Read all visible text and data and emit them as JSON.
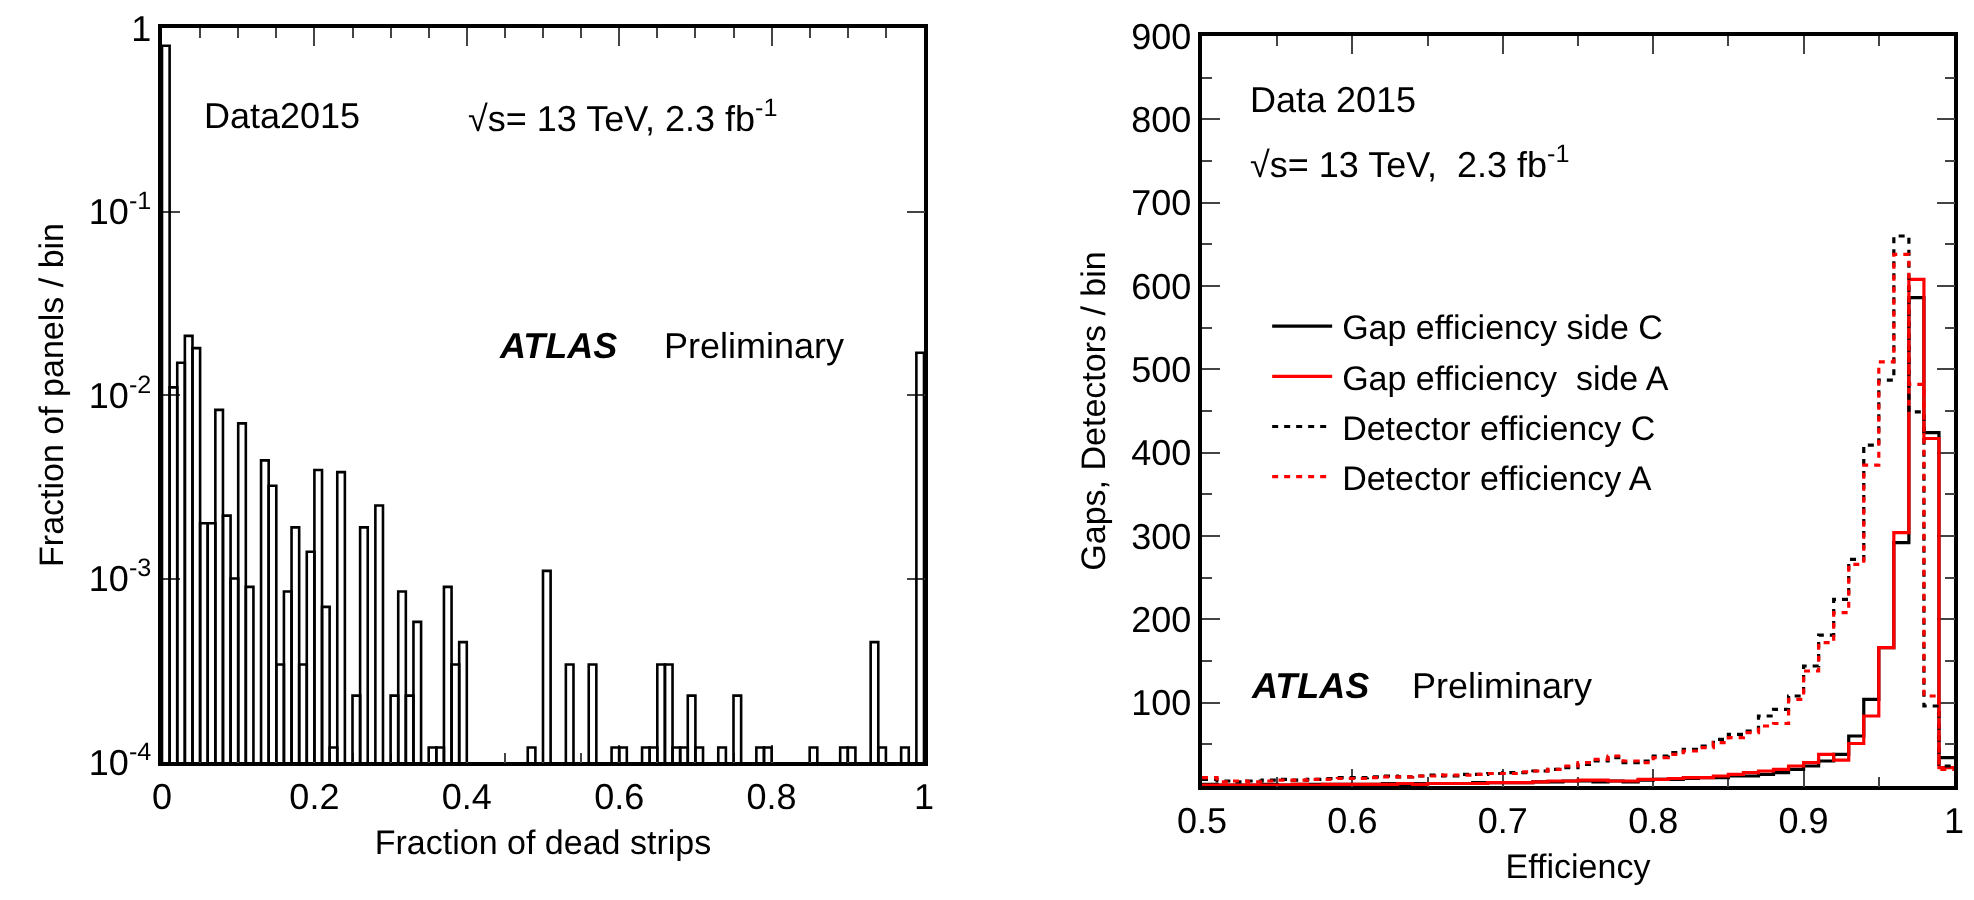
{
  "chart_data": [
    {
      "type": "histogram",
      "xlabel": "Fraction of dead strips",
      "ylabel": "Fraction of panels / bin",
      "annotations": [
        "Data2015",
        "√s= 13 TeV, 2.3 fb$^{-1}$",
        "ATLAS",
        "Preliminary"
      ],
      "bins": [
        0,
        0.01,
        0.02,
        0.03,
        0.04,
        0.05,
        0.06,
        0.07,
        0.08,
        0.09,
        0.1,
        0.11,
        0.12,
        0.13,
        0.14,
        0.15,
        0.16,
        0.17,
        0.18,
        0.19,
        0.2,
        0.21,
        0.22,
        0.23,
        0.24,
        0.25,
        0.26,
        0.27,
        0.28,
        0.29,
        0.3,
        0.31,
        0.32,
        0.33,
        0.34,
        0.35,
        0.36,
        0.37,
        0.38,
        0.39,
        0.4,
        0.41,
        0.42,
        0.43,
        0.44,
        0.45,
        0.46,
        0.47,
        0.48,
        0.49,
        0.5,
        0.51,
        0.52,
        0.53,
        0.54,
        0.55,
        0.56,
        0.57,
        0.58,
        0.59,
        0.6,
        0.61,
        0.62,
        0.63,
        0.64,
        0.65,
        0.66,
        0.67,
        0.68,
        0.69,
        0.7,
        0.71,
        0.72,
        0.73,
        0.74,
        0.75,
        0.76,
        0.77,
        0.78,
        0.79,
        0.8,
        0.81,
        0.82,
        0.83,
        0.84,
        0.85,
        0.86,
        0.87,
        0.88,
        0.89,
        0.9,
        0.91,
        0.92,
        0.93,
        0.94,
        0.95,
        0.96,
        0.97,
        0.98,
        0.99,
        1
      ],
      "values": [
        0.8,
        0.011,
        0.015,
        0.021,
        0.018,
        0.002,
        0.002,
        0.0083,
        0.0022,
        0.001,
        0.007,
        0.0009,
        null,
        0.0044,
        0.0032,
        0.00034,
        0.00085,
        0.0019,
        0.00034,
        0.0014,
        0.0039,
        0.0007,
        0.00012,
        0.0038,
        null,
        0.00023,
        0.0019,
        null,
        0.0025,
        null,
        0.00023,
        0.00085,
        0.00023,
        0.00058,
        null,
        0.00012,
        0.00012,
        0.0009,
        0.00034,
        0.00045,
        null,
        null,
        null,
        null,
        null,
        null,
        null,
        null,
        0.00012,
        null,
        0.0011,
        null,
        null,
        0.00034,
        null,
        null,
        0.00034,
        null,
        null,
        0.00012,
        0.00012,
        null,
        null,
        0.00012,
        0.00012,
        0.00034,
        0.00034,
        0.00012,
        0.00012,
        0.00023,
        0.00012,
        null,
        null,
        0.00012,
        null,
        0.00023,
        null,
        null,
        0.00012,
        0.00012,
        null,
        null,
        null,
        null,
        null,
        0.00012,
        null,
        null,
        null,
        0.00012,
        0.00012,
        null,
        null,
        0.00045,
        0.00012,
        null,
        null,
        0.00012,
        null,
        0.017
      ],
      "color": "#000000",
      "log": true,
      "xlim": [
        0,
        1
      ],
      "xticks": [
        0,
        0.2,
        0.4,
        0.6,
        0.8,
        1
      ],
      "ylim": [
        0.0001,
        1
      ],
      "yticks": [
        {
          "value": 0.0001,
          "label": "10$^{-4}$"
        },
        {
          "value": 0.001,
          "label": "10$^{-3}$"
        },
        {
          "value": 0.01,
          "label": "10$^{-2}$"
        },
        {
          "value": 0.1,
          "label": "10$^{-1}$"
        },
        1
      ]
    },
    {
      "type": "histogram",
      "xlabel": "Efficiency",
      "ylabel": "Gaps, Detectors / bin",
      "annotations": [
        "Data 2015",
        "√s= 13 TeV,  2.3 fb$^{-1}$",
        "ATLAS",
        "Preliminary"
      ],
      "bins": [
        0.5,
        0.51,
        0.52,
        0.53,
        0.54,
        0.55,
        0.56,
        0.57,
        0.58,
        0.59,
        0.6,
        0.61,
        0.62,
        0.63,
        0.64,
        0.65,
        0.66,
        0.67,
        0.68,
        0.69,
        0.7,
        0.71,
        0.72,
        0.73,
        0.74,
        0.75,
        0.76,
        0.77,
        0.78,
        0.79,
        0.8,
        0.81,
        0.82,
        0.83,
        0.84,
        0.85,
        0.86,
        0.87,
        0.88,
        0.89,
        0.9,
        0.91,
        0.92,
        0.93,
        0.94,
        0.95,
        0.96,
        0.97,
        0.98,
        0.99,
        1
      ],
      "series": [
        {
          "name": "Gap efficiency side C",
          "color": "#000000",
          "line_style": "solid",
          "values": [
            2,
            1,
            1,
            1,
            2,
            1,
            2,
            2,
            2,
            2,
            2,
            2,
            3,
            2,
            3,
            3,
            3,
            3,
            4,
            4,
            4,
            4,
            5,
            5,
            6,
            6,
            5,
            6,
            5,
            7,
            8,
            8,
            9,
            10,
            10,
            12,
            12,
            14,
            16,
            20,
            24,
            30,
            38,
            60,
            104,
            166,
            292,
            586,
            424,
            34
          ]
        },
        {
          "name": "Gap efficiency  side A",
          "color": "#ff0000",
          "line_style": "solid",
          "values": [
            1,
            1,
            1,
            1,
            1,
            1,
            2,
            1,
            2,
            2,
            2,
            2,
            2,
            3,
            2,
            3,
            3,
            3,
            3,
            4,
            4,
            4,
            5,
            6,
            6,
            7,
            7,
            6,
            6,
            8,
            8,
            9,
            10,
            10,
            12,
            14,
            16,
            18,
            20,
            24,
            28,
            38,
            31,
            51,
            84,
            166,
            304,
            608,
            417,
            22
          ]
        },
        {
          "name": "Detector efficiency C",
          "color": "#000000",
          "line_style": "dotted",
          "values": [
            8,
            6,
            5,
            6,
            7,
            8,
            7,
            8,
            9,
            10,
            10,
            11,
            12,
            11,
            12,
            13,
            12,
            14,
            14,
            15,
            16,
            16,
            18,
            20,
            22,
            26,
            30,
            34,
            28,
            30,
            36,
            40,
            44,
            48,
            56,
            62,
            66,
            84,
            92,
            108,
            144,
            181,
            224,
            272,
            409,
            487,
            660,
            449,
            96,
            24
          ]
        },
        {
          "name": "Detector efficiency A",
          "color": "#ff0000",
          "line_style": "dotted",
          "values": [
            10,
            5,
            6,
            5,
            6,
            7,
            7,
            8,
            8,
            9,
            9,
            10,
            11,
            11,
            12,
            12,
            13,
            13,
            14,
            15,
            15,
            17,
            18,
            20,
            24,
            28,
            32,
            36,
            30,
            28,
            34,
            38,
            42,
            46,
            52,
            58,
            64,
            72,
            75,
            104,
            138,
            172,
            208,
            266,
            385,
            509,
            638,
            482,
            108,
            20
          ]
        }
      ],
      "legend": "left",
      "xlim": [
        0.5,
        1
      ],
      "xticks": [
        0.5,
        0.6,
        0.7,
        0.8,
        0.9,
        1
      ],
      "ylim": [
        0,
        900
      ],
      "yticks": [
        100,
        200,
        300,
        400,
        500,
        600,
        700,
        800,
        900
      ]
    }
  ]
}
